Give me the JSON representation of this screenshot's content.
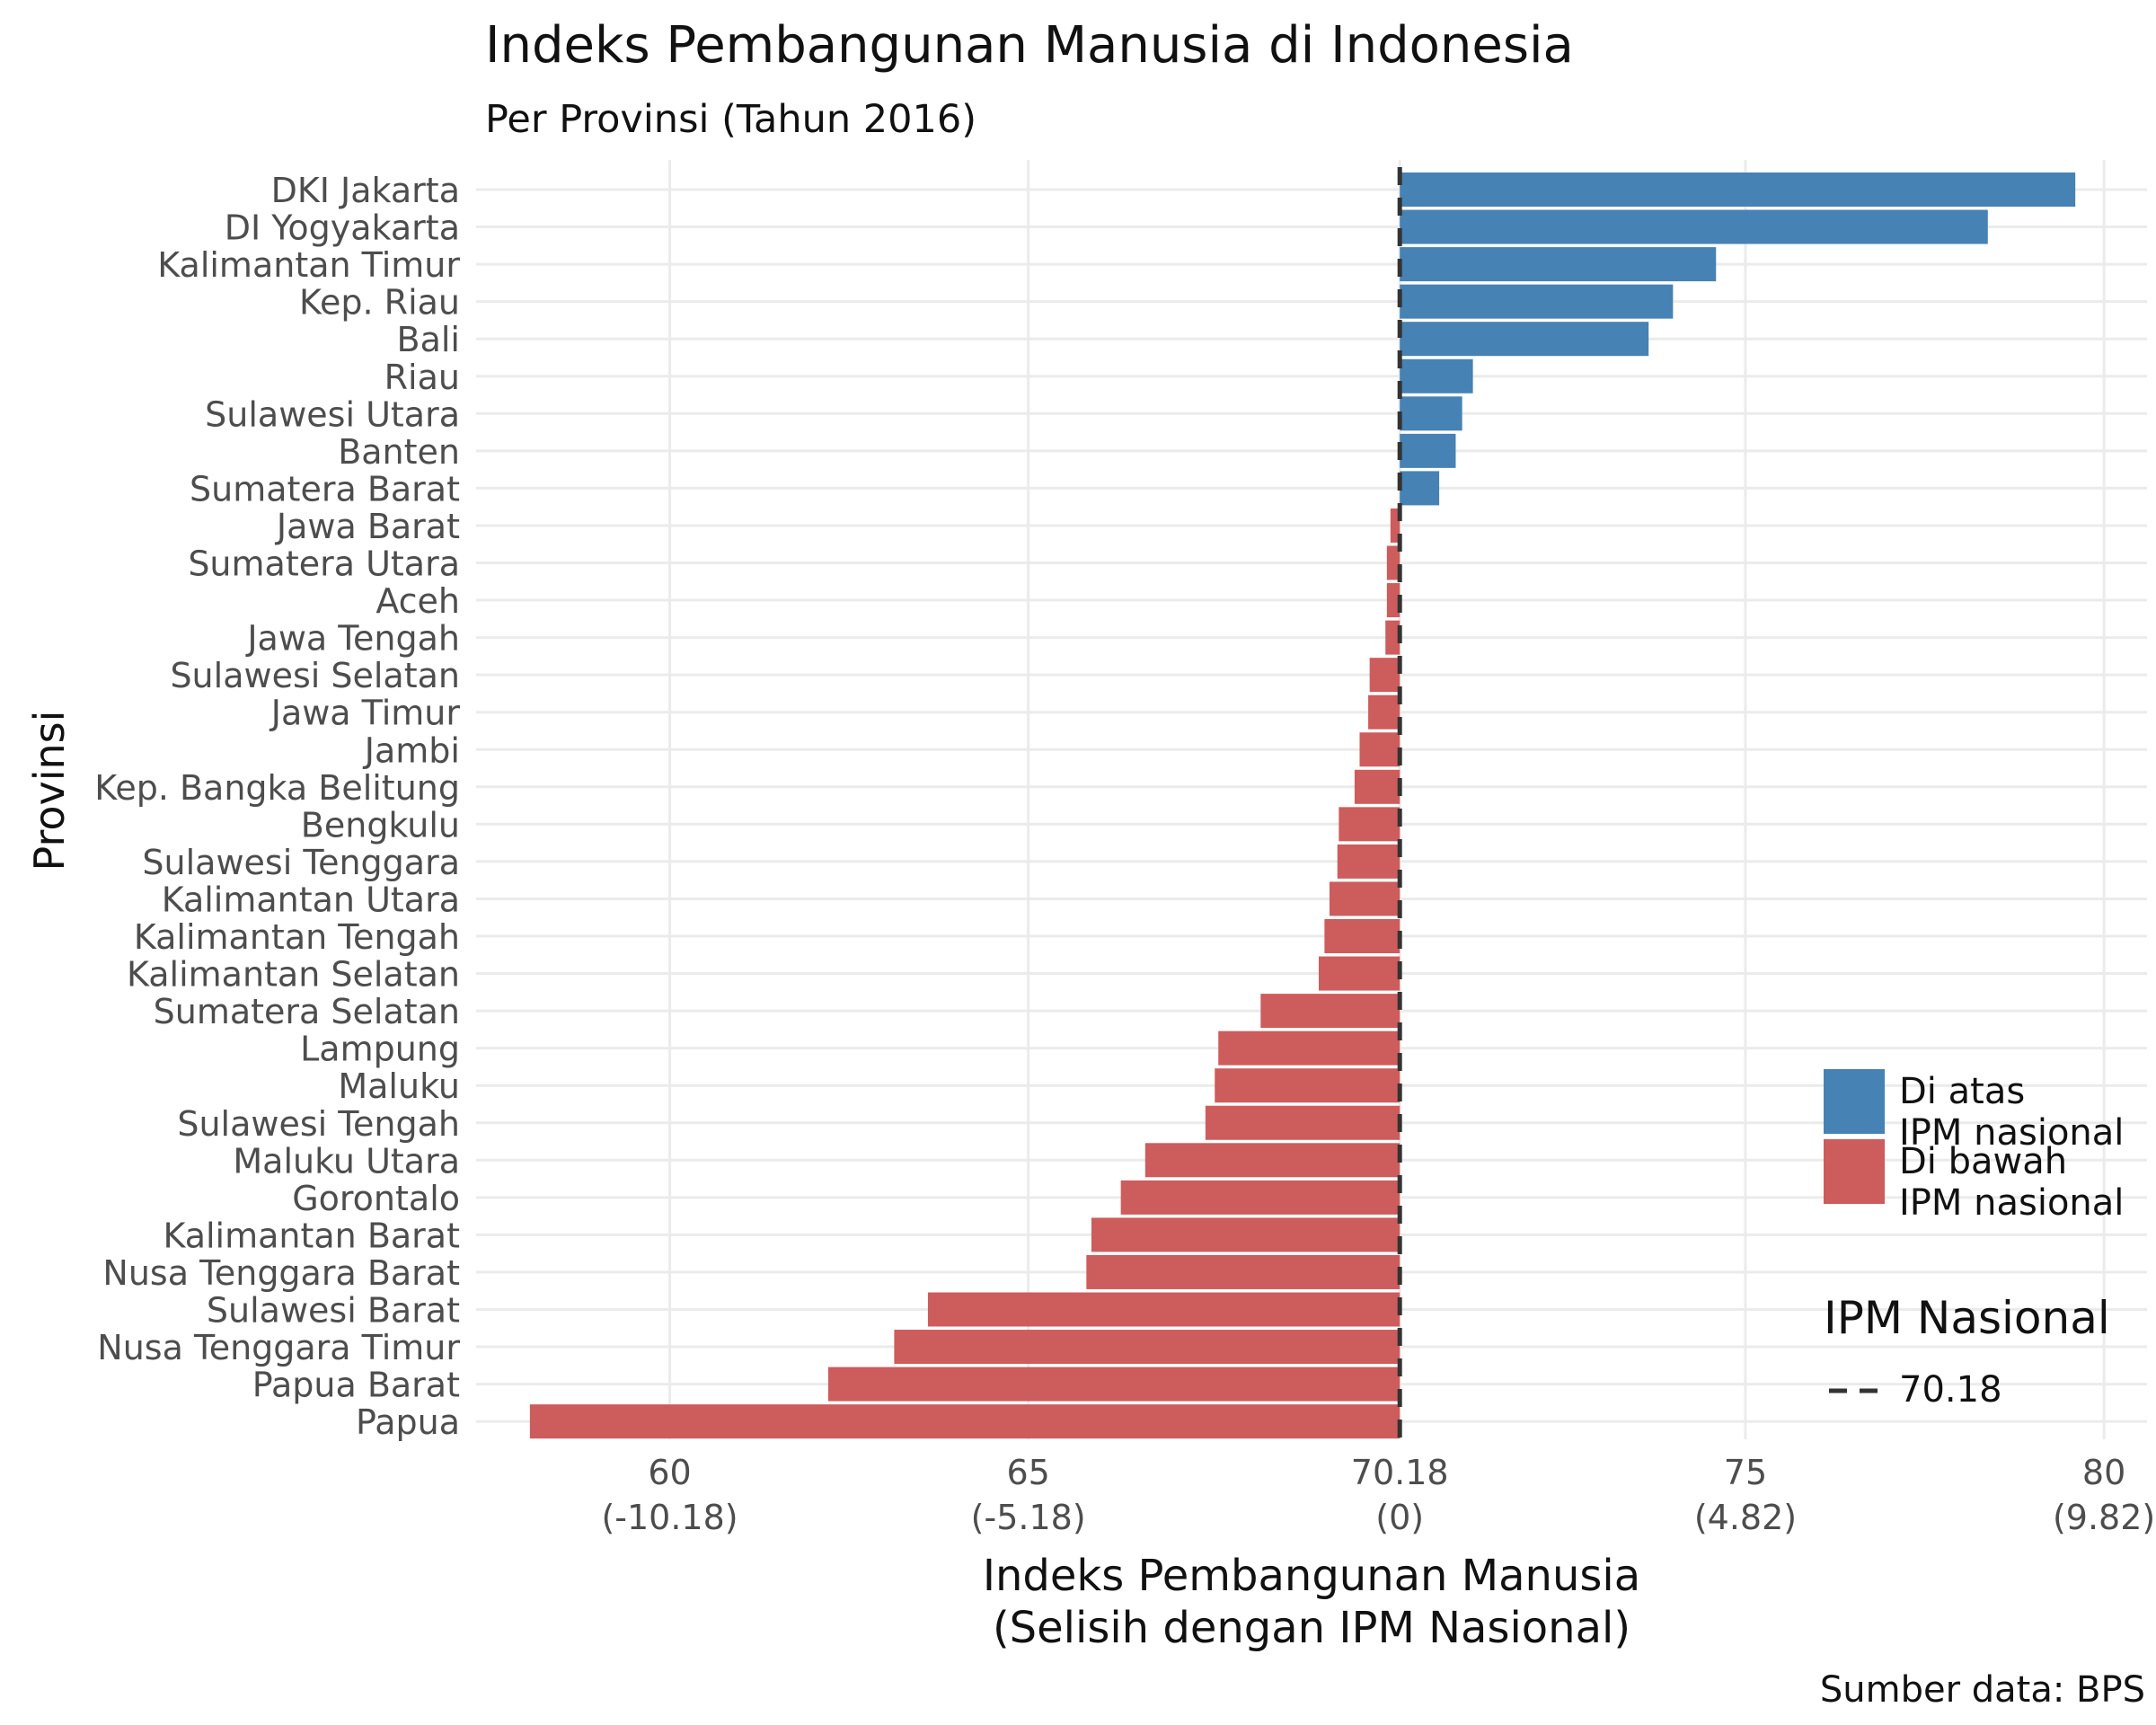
{
  "chart_data": {
    "type": "bar",
    "orientation": "horizontal",
    "title": "Indeks Pembangunan Manusia di Indonesia",
    "subtitle": "Per Provinsi (Tahun 2016)",
    "caption": "Sumber data: BPS",
    "xlabel_line1": "Indeks Pembangunan Manusia",
    "xlabel_line2": "(Selisih dengan IPM Nasional)",
    "ylabel": "Provinsi",
    "reference": {
      "label": "IPM Nasional",
      "value": 70.18,
      "value_label": "70.18"
    },
    "xlim": [
      57.3,
      80.6
    ],
    "xticks": [
      {
        "value": 60,
        "label": "60",
        "sublabel": "(-10.18)"
      },
      {
        "value": 65,
        "label": "65",
        "sublabel": "(-5.18)"
      },
      {
        "value": 70.18,
        "label": "70.18",
        "sublabel": "(0)"
      },
      {
        "value": 75,
        "label": "75",
        "sublabel": "(4.82)"
      },
      {
        "value": 80,
        "label": "80",
        "sublabel": "(9.82)"
      }
    ],
    "colors": {
      "above": "#4682B4",
      "below": "#CD5C5C",
      "reference": "#333333",
      "grid": "#EBEBEB"
    },
    "legend": {
      "position": "bottom-right",
      "items": [
        {
          "key": "above",
          "line1": "Di atas",
          "line2": "IPM nasional"
        },
        {
          "key": "below",
          "line1": "Di bawah",
          "line2": "IPM nasional"
        }
      ]
    },
    "categories": [
      "DKI Jakarta",
      "DI Yogyakarta",
      "Kalimantan Timur",
      "Kep. Riau",
      "Bali",
      "Riau",
      "Sulawesi Utara",
      "Banten",
      "Sumatera Barat",
      "Jawa Barat",
      "Sumatera Utara",
      "Aceh",
      "Jawa Tengah",
      "Sulawesi Selatan",
      "Jawa Timur",
      "Jambi",
      "Kep. Bangka Belitung",
      "Bengkulu",
      "Sulawesi Tenggara",
      "Kalimantan Utara",
      "Kalimantan Tengah",
      "Kalimantan Selatan",
      "Sumatera Selatan",
      "Lampung",
      "Maluku",
      "Sulawesi Tengah",
      "Maluku Utara",
      "Gorontalo",
      "Kalimantan Barat",
      "Nusa Tenggara Barat",
      "Sulawesi Barat",
      "Nusa Tenggara Timur",
      "Papua Barat",
      "Papua"
    ],
    "values": [
      79.6,
      78.38,
      74.59,
      73.99,
      73.65,
      71.2,
      71.05,
      70.96,
      70.73,
      70.05,
      70.0,
      70.0,
      69.98,
      69.76,
      69.74,
      69.62,
      69.55,
      69.33,
      69.31,
      69.2,
      69.13,
      69.05,
      68.24,
      67.65,
      67.6,
      67.47,
      66.63,
      66.29,
      65.88,
      65.81,
      63.6,
      63.13,
      62.21,
      58.05
    ]
  }
}
